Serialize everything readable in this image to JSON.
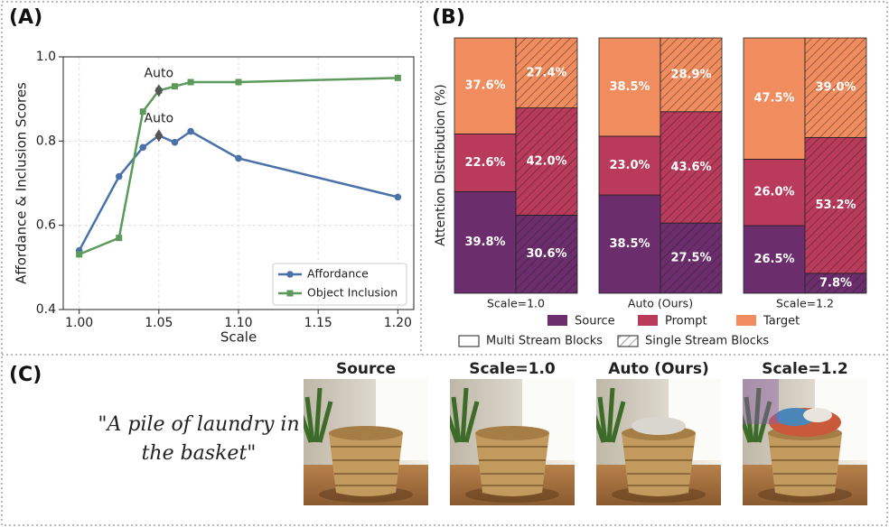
{
  "chart_data": [
    {
      "type": "line",
      "title": "(A)",
      "xlabel": "Scale",
      "ylabel": "Affordance & Inclusion Scores",
      "x": [
        1.0,
        1.025,
        1.04,
        1.05,
        1.06,
        1.07,
        1.1,
        1.2
      ],
      "series": [
        {
          "name": "Affordance",
          "color": "#4a72a8",
          "marker": "circle",
          "values": [
            0.54,
            0.716,
            0.785,
            0.813,
            0.797,
            0.823,
            0.759,
            0.667
          ]
        },
        {
          "name": "Object Inclusion",
          "color": "#5b9a5b",
          "marker": "square",
          "values": [
            0.531,
            0.57,
            0.87,
            0.92,
            0.93,
            0.94,
            0.94,
            0.95
          ]
        }
      ],
      "annotations": [
        {
          "text": "Auto",
          "x": 1.05,
          "y": 0.92
        },
        {
          "text": "Auto",
          "x": 1.05,
          "y": 0.813
        }
      ],
      "xlim": [
        0.99,
        1.21
      ],
      "ylim": [
        0.4,
        1.0
      ],
      "xticks": [
        {
          "value": 1,
          "label": "1.00"
        },
        {
          "value": 1.05,
          "label": "1.05"
        },
        {
          "value": 1.1,
          "label": "1.10"
        },
        {
          "value": 1.15,
          "label": "1.15"
        },
        {
          "value": 1.2,
          "label": "1.20"
        }
      ],
      "yticks": [
        0.4,
        0.6,
        0.8,
        {
          "value": 1,
          "label": "1.0"
        }
      ],
      "grid": true,
      "legend": "lower right"
    },
    {
      "type": "stacked-bar",
      "title": "(B)",
      "ylabel": "Attention Distribution (%)",
      "groups": [
        "Scale=1.0",
        "Auto (Ours)",
        "Scale=1.2"
      ],
      "stacks": [
        {
          "name": "Multi Stream Blocks",
          "hatch": false
        },
        {
          "name": "Single Stream Blocks",
          "hatch": true
        }
      ],
      "series": [
        {
          "name": "Source",
          "color": "#6c2d6d",
          "values": [
            39.8,
            30.6,
            38.5,
            27.5,
            26.5,
            7.8
          ],
          "value_labels": [
            "39.8%",
            "30.6%",
            "38.5%",
            "27.5%",
            "26.5%",
            "7.8%"
          ]
        },
        {
          "name": "Prompt",
          "color": "#b93a5b",
          "values": [
            22.6,
            42.0,
            23.0,
            43.6,
            26.0,
            53.2
          ],
          "value_labels": [
            "22.6%",
            "42.0%",
            "23.0%",
            "43.6%",
            "26.0%",
            "53.2%"
          ]
        },
        {
          "name": "Target",
          "color": "#f08c5e",
          "values": [
            37.6,
            27.4,
            38.5,
            28.9,
            47.5,
            39.0
          ],
          "value_labels": [
            "37.6%",
            "27.4%",
            "38.5%",
            "28.9%",
            "47.5%",
            "39.0%"
          ]
        }
      ],
      "ylim": [
        0,
        100
      ],
      "legend": "bottom"
    }
  ],
  "panel_c": {
    "label": "(C)",
    "prompt": "\"A pile of laundry in the basket\"",
    "images": [
      {
        "caption": "Source"
      },
      {
        "caption": "Scale=1.0"
      },
      {
        "caption": "Auto (Ours)"
      },
      {
        "caption": "Scale=1.2"
      }
    ]
  }
}
